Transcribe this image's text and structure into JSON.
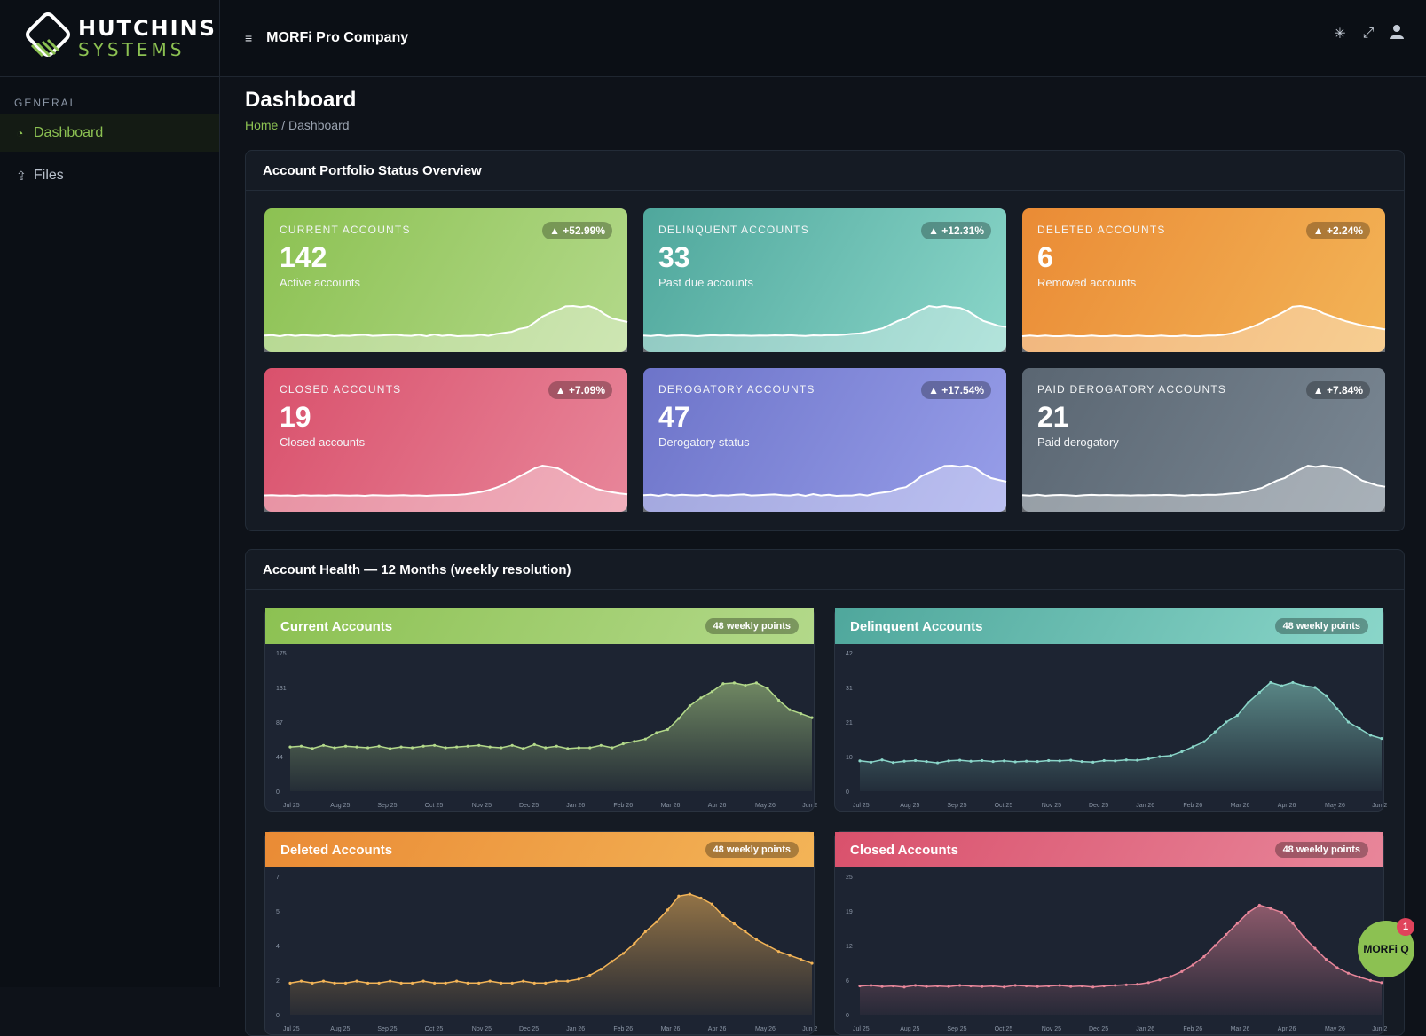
{
  "brand": {
    "line1": "HUTCHINS",
    "line2": "SYSTEMS"
  },
  "sidebar": {
    "section": "GENERAL",
    "items": [
      {
        "label": "Dashboard",
        "icon": "dashboard-icon",
        "active": true
      },
      {
        "label": "Files",
        "icon": "upload-icon",
        "active": false
      }
    ]
  },
  "topbar": {
    "menu_icon": "≡",
    "company": "MORFi Pro Company",
    "icons": [
      "theme-toggle-icon",
      "fullscreen-icon",
      "user-icon"
    ]
  },
  "page": {
    "title": "Dashboard",
    "breadcrumb_home": "Home",
    "breadcrumb_sep": "/",
    "breadcrumb_current": "Dashboard"
  },
  "overview": {
    "title": "Account Portfolio Status Overview",
    "cards": [
      {
        "label": "CURRENT ACCOUNTS",
        "value": "142",
        "sub": "Active accounts",
        "badge": "▲ +52.99%",
        "color": "#8cc152"
      },
      {
        "label": "DELINQUENT ACCOUNTS",
        "value": "33",
        "sub": "Past due accounts",
        "badge": "▲ +12.31%",
        "color": "#4fa79c"
      },
      {
        "label": "DELETED ACCOUNTS",
        "value": "6",
        "sub": "Removed accounts",
        "badge": "▲ +2.24%",
        "color": "#ea8b35"
      },
      {
        "label": "CLOSED ACCOUNTS",
        "value": "19",
        "sub": "Closed accounts",
        "badge": "▲ +7.09%",
        "color": "#d9516c"
      },
      {
        "label": "DEROGATORY ACCOUNTS",
        "value": "47",
        "sub": "Derogatory status",
        "badge": "▲ +17.54%",
        "color": "#6d74c9"
      },
      {
        "label": "PAID DEROGATORY ACCOUNTS",
        "value": "21",
        "sub": "Paid derogatory",
        "badge": "▲ +7.84%",
        "color": "#5a6672"
      }
    ]
  },
  "health": {
    "title": "Account Health — 12 Months (weekly resolution)",
    "points_label": "48 weekly points",
    "x_labels": [
      "Jul 25",
      "Aug 25",
      "Sep 25",
      "Oct 25",
      "Nov 25",
      "Dec 25",
      "Jan 26",
      "Feb 26",
      "Mar 26",
      "Apr 26",
      "May 26",
      "Jun 2"
    ]
  },
  "chart_data": [
    {
      "type": "area",
      "title": "Current Accounts",
      "color": "#b3d98a",
      "y_ticks": [
        "0",
        "44",
        "87",
        "131",
        "175"
      ],
      "ylim": [
        0,
        175
      ],
      "values": [
        56,
        57,
        54,
        58,
        55,
        57,
        56,
        55,
        57,
        54,
        56,
        55,
        57,
        58,
        55,
        56,
        57,
        58,
        56,
        55,
        58,
        54,
        59,
        55,
        57,
        54,
        55,
        55,
        58,
        55,
        60,
        63,
        66,
        74,
        78,
        92,
        108,
        118,
        126,
        136,
        137,
        134,
        137,
        130,
        115,
        103,
        98,
        93
      ]
    },
    {
      "type": "area",
      "title": "Delinquent Accounts",
      "color": "#8ad6c9",
      "y_ticks": [
        "0",
        "10",
        "21",
        "31",
        "42"
      ],
      "ylim": [
        0,
        42
      ],
      "values": [
        9.2,
        8.8,
        9.5,
        8.7,
        9.1,
        9.3,
        9.0,
        8.6,
        9.2,
        9.4,
        9.1,
        9.3,
        9.0,
        9.2,
        8.9,
        9.1,
        9.0,
        9.3,
        9.2,
        9.4,
        9.0,
        8.8,
        9.3,
        9.2,
        9.5,
        9.4,
        9.8,
        10.5,
        10.8,
        12,
        13.5,
        15,
        18,
        21,
        23,
        27,
        30,
        33,
        32,
        33,
        32,
        31.5,
        29,
        25,
        21,
        19,
        17,
        16
      ]
    },
    {
      "type": "area",
      "title": "Deleted Accounts",
      "color": "#f3b457",
      "y_ticks": [
        "0",
        "2",
        "4",
        "5",
        "7"
      ],
      "ylim": [
        0,
        7
      ],
      "values": [
        1.6,
        1.7,
        1.6,
        1.7,
        1.6,
        1.6,
        1.7,
        1.6,
        1.6,
        1.7,
        1.6,
        1.6,
        1.7,
        1.6,
        1.6,
        1.7,
        1.6,
        1.6,
        1.7,
        1.6,
        1.6,
        1.7,
        1.6,
        1.6,
        1.7,
        1.7,
        1.8,
        2.0,
        2.3,
        2.7,
        3.1,
        3.6,
        4.2,
        4.7,
        5.3,
        6.0,
        6.1,
        5.9,
        5.6,
        5.0,
        4.6,
        4.2,
        3.8,
        3.5,
        3.2,
        3.0,
        2.8,
        2.6
      ]
    },
    {
      "type": "area",
      "title": "Closed Accounts",
      "color": "#e8869a",
      "y_ticks": [
        "0",
        "6",
        "12",
        "19",
        "25"
      ],
      "ylim": [
        0,
        25
      ],
      "values": [
        5.2,
        5.3,
        5.1,
        5.2,
        5.0,
        5.3,
        5.1,
        5.2,
        5.1,
        5.3,
        5.2,
        5.1,
        5.2,
        5.0,
        5.3,
        5.2,
        5.1,
        5.2,
        5.3,
        5.1,
        5.2,
        5.0,
        5.2,
        5.3,
        5.4,
        5.5,
        5.8,
        6.3,
        6.9,
        7.8,
        9,
        10.5,
        12.5,
        14.5,
        16.5,
        18.5,
        19.8,
        19.2,
        18.5,
        16.5,
        14,
        12,
        10,
        8.5,
        7.5,
        6.8,
        6.2,
        5.8
      ]
    }
  ],
  "fab": {
    "label": "MORFi Q",
    "badge": "1"
  }
}
